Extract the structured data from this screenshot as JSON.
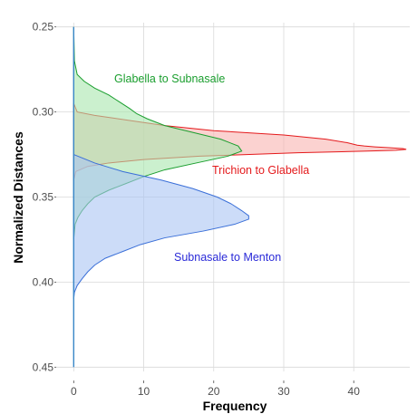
{
  "chart_data": {
    "type": "area",
    "orientation": "horizontal-density",
    "xlabel": "Frequency",
    "ylabel": "Normalized Distances",
    "xlim": [
      -2.5,
      48
    ],
    "ylim": [
      0.2475,
      0.4525
    ],
    "y_reversed": true,
    "grid": true,
    "xticks": [
      "0",
      "10",
      "20",
      "30",
      "40"
    ],
    "yticks": [
      "0.25",
      "0.30",
      "0.35",
      "0.40",
      "0.45"
    ],
    "xtick_values": [
      0,
      10,
      20,
      30,
      40
    ],
    "ytick_values": [
      0.25,
      0.3,
      0.35,
      0.4,
      0.45
    ],
    "series": [
      {
        "name": "Trichion to Glabella",
        "color": "#e41a1c",
        "fill": "#f8b4b0",
        "y": [
          0.295,
          0.3,
          0.302,
          0.305,
          0.308,
          0.311,
          0.3135,
          0.316,
          0.318,
          0.3195,
          0.32,
          0.3205,
          0.321,
          0.3215,
          0.322,
          0.3225,
          0.323,
          0.324,
          0.326,
          0.328,
          0.33,
          0.332,
          0.335,
          0.34
        ],
        "values": [
          0.0,
          0.5,
          3.0,
          8.0,
          13.0,
          20.0,
          30.0,
          36.0,
          39.0,
          40.5,
          41.5,
          43.0,
          45.0,
          47.0,
          47.5,
          46.0,
          42.0,
          32.0,
          18.0,
          10.0,
          5.0,
          2.0,
          0.3,
          0.0
        ]
      },
      {
        "name": "Glabella to Subnasale",
        "color": "#1a9e2e",
        "fill": "#a8e6ae",
        "y": [
          0.25,
          0.27,
          0.278,
          0.282,
          0.286,
          0.29,
          0.294,
          0.298,
          0.301,
          0.304,
          0.308,
          0.312,
          0.316,
          0.32,
          0.323,
          0.326,
          0.33,
          0.334,
          0.338,
          0.342,
          0.346,
          0.35,
          0.354,
          0.358,
          0.362,
          0.366,
          0.375
        ],
        "values": [
          0.0,
          0.1,
          0.5,
          1.5,
          3.0,
          5.0,
          6.5,
          8.0,
          9.0,
          10.5,
          13.0,
          17.0,
          21.0,
          23.5,
          24.0,
          22.0,
          17.5,
          13.0,
          10.0,
          7.5,
          5.0,
          3.0,
          2.0,
          1.2,
          0.6,
          0.2,
          0.0
        ]
      },
      {
        "name": "Subnasale to Menton",
        "color": "#3a6fd8",
        "fill": "#aac4f3",
        "y": [
          0.325,
          0.33,
          0.335,
          0.34,
          0.345,
          0.35,
          0.354,
          0.358,
          0.361,
          0.363,
          0.366,
          0.37,
          0.374,
          0.378,
          0.382,
          0.386,
          0.39,
          0.394,
          0.398,
          0.402,
          0.406,
          0.41
        ],
        "values": [
          0.0,
          3.0,
          7.0,
          12.5,
          17.0,
          20.5,
          22.5,
          24.0,
          25.0,
          25.0,
          23.0,
          18.5,
          13.0,
          9.5,
          7.0,
          4.5,
          3.0,
          2.0,
          1.2,
          0.5,
          0.1,
          0.0
        ]
      }
    ],
    "annotations": [
      {
        "text": "Glabella to Subnasale",
        "series": 1
      },
      {
        "text": "Trichion to Glabella",
        "series": 0
      },
      {
        "text": "Subnasale to Menton",
        "series": 2
      }
    ]
  }
}
